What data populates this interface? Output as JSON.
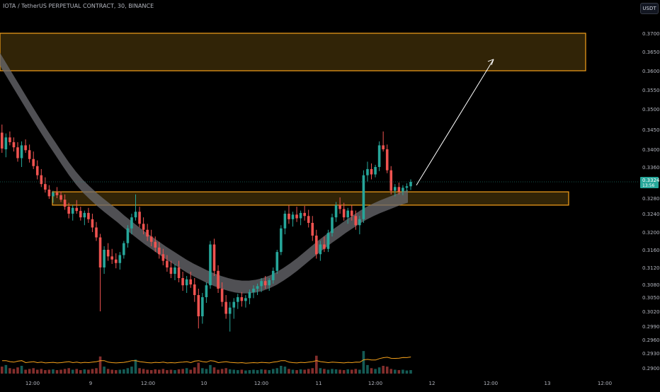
{
  "header": {
    "symbol_line": "IOTA / TetherUS PERPETUAL CONTRACT, 30, BINANCE",
    "currency_button": "USDT"
  },
  "colors": {
    "background": "#000000",
    "bull": "#26a69a",
    "bear": "#ef5350",
    "zone_fill": "#3a2a08",
    "zone_border": "#f7a21b",
    "ma_band": "#6b6b70",
    "volume_ma": "#f7a21b",
    "price_line": "#26a69a",
    "arrow": "#ffffff",
    "axis_text": "#b2b5be"
  },
  "chart_data": {
    "type": "candlestick",
    "y_axis": {
      "labels": [
        "0.3700",
        "0.3650",
        "0.3600",
        "0.3550",
        "0.3500",
        "0.3450",
        "0.3400",
        "0.3360",
        "0.3324",
        "0.3280",
        "0.3240",
        "0.3200",
        "0.3160",
        "0.3120",
        "0.3080",
        "0.3050",
        "0.3020",
        "0.2990",
        "0.2960",
        "0.2930",
        "0.2900"
      ],
      "label_values": [
        0.37,
        0.365,
        0.36,
        0.355,
        0.35,
        0.345,
        0.34,
        0.336,
        0.3324,
        0.328,
        0.324,
        0.32,
        0.316,
        0.312,
        0.308,
        0.305,
        0.302,
        0.299,
        0.296,
        0.293,
        0.29
      ]
    },
    "x_axis": {
      "labels": [
        "12:00",
        "9",
        "12:00",
        "10",
        "12:00",
        "11",
        "12:00",
        "12",
        "12:00",
        "13",
        "12:00"
      ],
      "label_bar_index": [
        8,
        32,
        56,
        80,
        104,
        128,
        152,
        176,
        200,
        224,
        248
      ]
    },
    "last_price": {
      "value": "0.3324",
      "countdown": "13:56"
    },
    "zones": [
      {
        "top": 0.37,
        "bottom": 0.36,
        "start_index": 0,
        "end_index": 240
      },
      {
        "top": 0.3297,
        "bottom": 0.3262,
        "start_index": 10,
        "end_index": 234
      }
    ],
    "projection_arrow": {
      "from_index": 171,
      "from_price": 0.3315,
      "to_index": 204,
      "to_price": 0.363
    },
    "candles": [
      [
        0.3442,
        0.3462,
        0.3392,
        0.3402
      ],
      [
        0.34,
        0.344,
        0.3382,
        0.343
      ],
      [
        0.343,
        0.3445,
        0.341,
        0.3418
      ],
      [
        0.3418,
        0.343,
        0.3395,
        0.3405
      ],
      [
        0.3405,
        0.3418,
        0.3372,
        0.338
      ],
      [
        0.338,
        0.342,
        0.336,
        0.341
      ],
      [
        0.341,
        0.3425,
        0.3392,
        0.3398
      ],
      [
        0.3398,
        0.3412,
        0.337,
        0.3378
      ],
      [
        0.3378,
        0.3395,
        0.3355,
        0.3362
      ],
      [
        0.3362,
        0.3375,
        0.333,
        0.334
      ],
      [
        0.334,
        0.3355,
        0.331,
        0.3318
      ],
      [
        0.3318,
        0.3335,
        0.3295,
        0.3303
      ],
      [
        0.3303,
        0.3315,
        0.3278,
        0.3285
      ],
      [
        0.3285,
        0.33,
        0.3268,
        0.3295
      ],
      [
        0.3295,
        0.331,
        0.328,
        0.3288
      ],
      [
        0.3288,
        0.3298,
        0.327,
        0.3276
      ],
      [
        0.3276,
        0.329,
        0.325,
        0.3258
      ],
      [
        0.3258,
        0.3268,
        0.323,
        0.324
      ],
      [
        0.324,
        0.3262,
        0.3225,
        0.3255
      ],
      [
        0.3255,
        0.3275,
        0.324,
        0.3247
      ],
      [
        0.3247,
        0.3258,
        0.3225,
        0.3232
      ],
      [
        0.3232,
        0.3248,
        0.3215,
        0.3242
      ],
      [
        0.3242,
        0.3255,
        0.322,
        0.3228
      ],
      [
        0.3228,
        0.324,
        0.32,
        0.321
      ],
      [
        0.321,
        0.3222,
        0.318,
        0.3188
      ],
      [
        0.3188,
        0.3196,
        0.302,
        0.312
      ],
      [
        0.312,
        0.3168,
        0.3105,
        0.316
      ],
      [
        0.316,
        0.3175,
        0.3135,
        0.3145
      ],
      [
        0.3145,
        0.3162,
        0.3128,
        0.3138
      ],
      [
        0.3138,
        0.3152,
        0.3118,
        0.313
      ],
      [
        0.313,
        0.3155,
        0.3115,
        0.3148
      ],
      [
        0.3148,
        0.318,
        0.314,
        0.3175
      ],
      [
        0.3175,
        0.3215,
        0.3165,
        0.3208
      ],
      [
        0.3208,
        0.324,
        0.3195,
        0.3232
      ],
      [
        0.3232,
        0.329,
        0.3225,
        0.3245
      ],
      [
        0.3245,
        0.3258,
        0.321,
        0.3218
      ],
      [
        0.3218,
        0.3232,
        0.3195,
        0.3205
      ],
      [
        0.3205,
        0.3218,
        0.318,
        0.319
      ],
      [
        0.319,
        0.3205,
        0.3168,
        0.3178
      ],
      [
        0.3178,
        0.319,
        0.3155,
        0.3165
      ],
      [
        0.3165,
        0.3178,
        0.314,
        0.315
      ],
      [
        0.315,
        0.3162,
        0.3125,
        0.3135
      ],
      [
        0.3135,
        0.3148,
        0.311,
        0.312
      ],
      [
        0.312,
        0.3135,
        0.3095,
        0.3105
      ],
      [
        0.3105,
        0.3128,
        0.309,
        0.312
      ],
      [
        0.312,
        0.3135,
        0.3085,
        0.3095
      ],
      [
        0.3095,
        0.311,
        0.3065,
        0.3078
      ],
      [
        0.3078,
        0.31,
        0.306,
        0.3092
      ],
      [
        0.3092,
        0.311,
        0.3072,
        0.308
      ],
      [
        0.308,
        0.3095,
        0.304,
        0.3055
      ],
      [
        0.3055,
        0.307,
        0.2985,
        0.301
      ],
      [
        0.301,
        0.306,
        0.2995,
        0.305
      ],
      [
        0.305,
        0.3085,
        0.3038,
        0.3078
      ],
      [
        0.3078,
        0.318,
        0.307,
        0.3172
      ],
      [
        0.3172,
        0.3185,
        0.31,
        0.3112
      ],
      [
        0.3112,
        0.3125,
        0.306,
        0.307
      ],
      [
        0.307,
        0.3085,
        0.303,
        0.304
      ],
      [
        0.304,
        0.3055,
        0.3005,
        0.3015
      ],
      [
        0.3015,
        0.304,
        0.2978,
        0.3028
      ],
      [
        0.3028,
        0.3048,
        0.3005,
        0.304
      ],
      [
        0.304,
        0.3058,
        0.3025,
        0.305
      ],
      [
        0.305,
        0.3062,
        0.303,
        0.3042
      ],
      [
        0.3042,
        0.3055,
        0.3028,
        0.3048
      ],
      [
        0.3048,
        0.3068,
        0.3035,
        0.3062
      ],
      [
        0.3062,
        0.3078,
        0.3048,
        0.307
      ],
      [
        0.307,
        0.3082,
        0.3055,
        0.3076
      ],
      [
        0.3076,
        0.3095,
        0.3062,
        0.3088
      ],
      [
        0.3088,
        0.31,
        0.307,
        0.3078
      ],
      [
        0.3078,
        0.3095,
        0.3065,
        0.309
      ],
      [
        0.309,
        0.312,
        0.3082,
        0.3112
      ],
      [
        0.3112,
        0.316,
        0.3105,
        0.3155
      ],
      [
        0.3155,
        0.3215,
        0.3148,
        0.3208
      ],
      [
        0.3208,
        0.3248,
        0.3195,
        0.324
      ],
      [
        0.324,
        0.3262,
        0.3218,
        0.3228
      ],
      [
        0.3228,
        0.3245,
        0.3212,
        0.3238
      ],
      [
        0.3238,
        0.3258,
        0.3222,
        0.323
      ],
      [
        0.323,
        0.3248,
        0.3215,
        0.3242
      ],
      [
        0.3242,
        0.326,
        0.3225,
        0.3235
      ],
      [
        0.3235,
        0.325,
        0.321,
        0.322
      ],
      [
        0.322,
        0.3235,
        0.318,
        0.3192
      ],
      [
        0.3192,
        0.3205,
        0.314,
        0.315
      ],
      [
        0.315,
        0.318,
        0.3135,
        0.3172
      ],
      [
        0.3172,
        0.319,
        0.3155,
        0.3162
      ],
      [
        0.3162,
        0.3205,
        0.3155,
        0.3198
      ],
      [
        0.3198,
        0.324,
        0.319,
        0.3232
      ],
      [
        0.3232,
        0.327,
        0.3222,
        0.3262
      ],
      [
        0.3262,
        0.3282,
        0.324,
        0.3252
      ],
      [
        0.3252,
        0.3268,
        0.3225,
        0.3232
      ],
      [
        0.3232,
        0.3255,
        0.3218,
        0.3248
      ],
      [
        0.3248,
        0.3262,
        0.3225,
        0.3235
      ],
      [
        0.3235,
        0.3248,
        0.3205,
        0.3215
      ],
      [
        0.3215,
        0.3235,
        0.3195,
        0.3228
      ],
      [
        0.3228,
        0.3352,
        0.322,
        0.334
      ],
      [
        0.334,
        0.3372,
        0.3325,
        0.3355
      ],
      [
        0.3355,
        0.3368,
        0.333,
        0.3342
      ],
      [
        0.3342,
        0.3365,
        0.3335,
        0.336
      ],
      [
        0.336,
        0.342,
        0.335,
        0.341
      ],
      [
        0.341,
        0.3445,
        0.3395,
        0.34
      ],
      [
        0.34,
        0.3412,
        0.3345,
        0.3352
      ],
      [
        0.3352,
        0.3362,
        0.329,
        0.33
      ],
      [
        0.33,
        0.3318,
        0.3285,
        0.331
      ],
      [
        0.331,
        0.3322,
        0.329,
        0.3298
      ],
      [
        0.3298,
        0.3315,
        0.3288,
        0.3308
      ],
      [
        0.3308,
        0.332,
        0.3298,
        0.3312
      ],
      [
        0.3312,
        0.333,
        0.3302,
        0.3324
      ]
    ],
    "volumes": [
      18,
      22,
      14,
      12,
      16,
      20,
      10,
      12,
      14,
      10,
      12,
      9,
      10,
      11,
      9,
      10,
      12,
      14,
      10,
      12,
      9,
      11,
      10,
      12,
      14,
      44,
      18,
      12,
      10,
      9,
      10,
      11,
      14,
      18,
      36,
      14,
      12,
      10,
      9,
      11,
      10,
      12,
      9,
      10,
      9,
      11,
      12,
      14,
      10,
      16,
      28,
      14,
      12,
      22,
      16,
      10,
      12,
      14,
      11,
      10,
      9,
      10,
      8,
      9,
      10,
      9,
      11,
      10,
      9,
      12,
      14,
      20,
      18,
      12,
      10,
      9,
      11,
      10,
      12,
      14,
      46,
      14,
      12,
      10,
      12,
      11,
      10,
      9,
      11,
      10,
      12,
      10,
      58,
      22,
      14,
      12,
      16,
      20,
      18,
      12,
      10,
      9,
      10,
      8,
      9
    ],
    "volume_ma": [
      0.28,
      0.33
    ],
    "ma_band_center": [
      0.363,
      0.36,
      0.357,
      0.354,
      0.351,
      0.3482,
      0.3455,
      0.3428,
      0.3402,
      0.3378,
      0.3355,
      0.3333,
      0.3312,
      0.3294,
      0.3277,
      0.3262,
      0.3248,
      0.3235,
      0.3222,
      0.321,
      0.3198,
      0.3186,
      0.3175,
      0.3164,
      0.3153,
      0.3143,
      0.3133,
      0.3123,
      0.3114,
      0.3106,
      0.3098,
      0.3091,
      0.3085,
      0.308,
      0.3076,
      0.3074,
      0.3074,
      0.3076,
      0.308,
      0.3086,
      0.3094,
      0.3104,
      0.3115,
      0.3127,
      0.314,
      0.3153,
      0.3166,
      0.3178,
      0.319,
      0.3201,
      0.3212,
      0.3222,
      0.3232,
      0.3241,
      0.325,
      0.3258,
      0.3265,
      0.3272,
      0.3279,
      0.3285
    ]
  }
}
